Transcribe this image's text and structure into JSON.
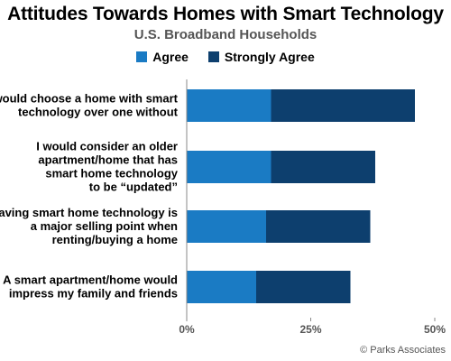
{
  "chart_data": {
    "type": "bar",
    "orientation": "horizontal",
    "stacked": true,
    "title": "Attitudes Towards Homes with Smart Technology",
    "subtitle": "U.S. Broadband Households",
    "categories": [
      [
        "I would choose a home with smart",
        "technology over one without"
      ],
      [
        "I would consider an older",
        "apartment/home that has",
        "smart home technology",
        "to be “updated”"
      ],
      [
        "Having smart home technology is",
        "a major selling point when",
        "renting/buying a home"
      ],
      [
        "A smart apartment/home would",
        "impress my family and friends"
      ]
    ],
    "series": [
      {
        "name": "Agree",
        "color": "#1a7bc4",
        "values": [
          17,
          17,
          16,
          14
        ]
      },
      {
        "name": "Strongly Agree",
        "color": "#0d3f6e",
        "values": [
          29,
          21,
          21,
          19
        ]
      }
    ],
    "xlim": [
      0,
      50
    ],
    "ticks": [
      0,
      25,
      50
    ],
    "tick_labels": [
      "0%",
      "25%",
      "50%"
    ],
    "legend_position": "top",
    "grid": false
  },
  "credit": "© Parks Associates"
}
